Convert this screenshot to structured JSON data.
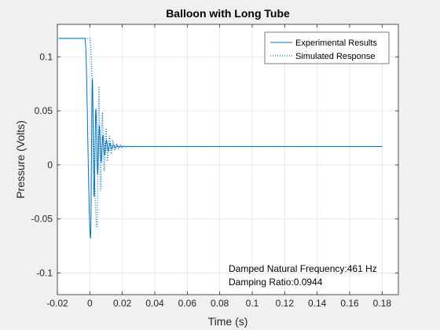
{
  "chart_data": {
    "type": "line",
    "title": "Balloon with Long Tube",
    "xlabel": "Time (s)",
    "ylabel": "Pressure (Volts)",
    "xlim": [
      -0.02,
      0.19
    ],
    "ylim": [
      -0.12,
      0.13
    ],
    "xticks": [
      -0.02,
      0,
      0.02,
      0.04,
      0.06,
      0.08,
      0.1,
      0.12,
      0.14,
      0.16,
      0.18
    ],
    "xtick_labels": [
      "-0.02",
      "0",
      "0.02",
      "0.04",
      "0.06",
      "0.08",
      "0.1",
      "0.12",
      "0.14",
      "0.16",
      "0.18"
    ],
    "yticks": [
      -0.1,
      -0.05,
      0,
      0.05,
      0.1
    ],
    "ytick_labels": [
      "-0.1",
      "-0.05",
      "0",
      "0.05",
      "0.1"
    ],
    "grid": true,
    "legend_position": "top-right",
    "colors": {
      "series": "#0072bd",
      "axes": "#262626",
      "grid": "#dfdfdf",
      "background": "#ffffff",
      "figure": "#f0f0f0"
    },
    "series": [
      {
        "name": "Experimental Results",
        "style": "solid",
        "model": {
          "t0": -0.003,
          "baseline": 0.117,
          "offset": 0.017,
          "drop_end": 0.0005,
          "drop_value": -0.068,
          "amplitude": 0.085,
          "damping_ratio": 0.0944,
          "natural_frequency_hz": 461,
          "t_end": 0.18
        }
      },
      {
        "name": "Simulated Response",
        "style": "dotted",
        "model": {
          "t0": 0.0,
          "baseline": 0.117,
          "offset": 0.017,
          "drop_end": 0.0045,
          "drop_value": -0.058,
          "amplitude": 0.075,
          "damping_ratio": 0.0944,
          "natural_frequency_hz": 461,
          "t_end": 0.18
        }
      }
    ],
    "annotations": [
      "Damped Natural Frequency:461 Hz",
      "Damping Ratio:0.0944"
    ]
  }
}
